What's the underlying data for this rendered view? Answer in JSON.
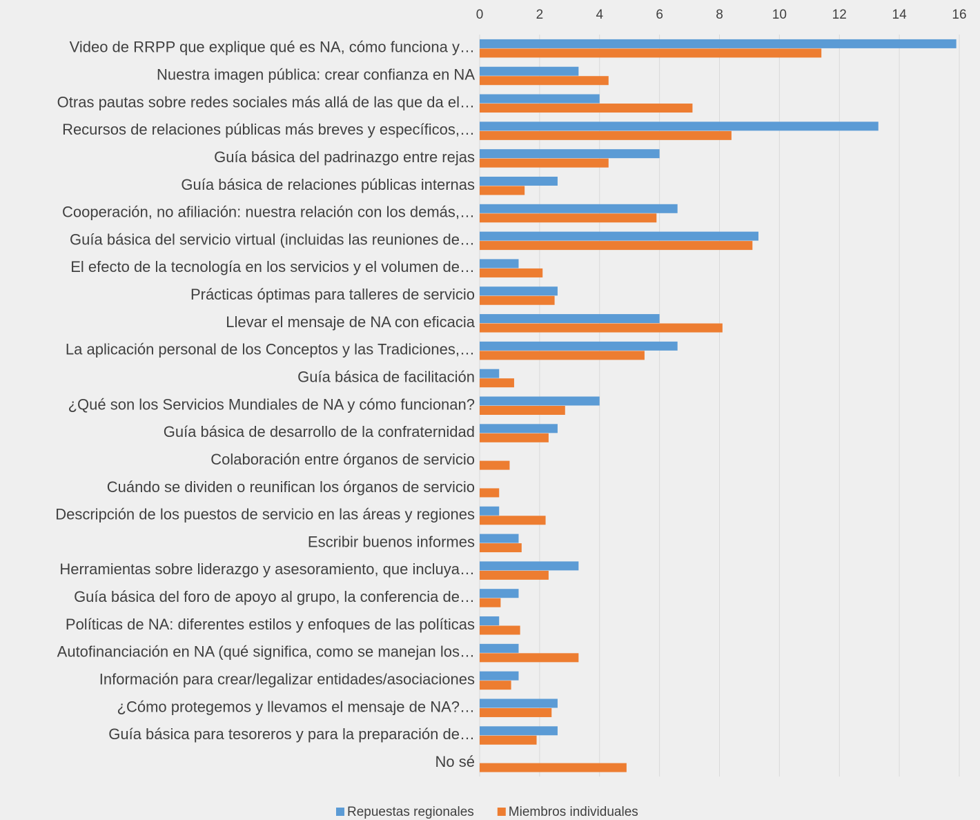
{
  "chart_data": {
    "type": "bar",
    "orientation": "horizontal",
    "categories": [
      "Video de RRPP que explique qué es NA, cómo funciona y…",
      "Nuestra imagen pública: crear confianza en NA",
      "Otras pautas sobre redes sociales más allá de las que da el…",
      "Recursos de relaciones públicas más breves y específicos,…",
      "Guía básica del padrinazgo entre rejas",
      "Guía básica de relaciones públicas internas",
      "Cooperación, no afiliación: nuestra relación con los demás,…",
      "Guía básica del servicio virtual (incluidas las reuniones de…",
      "El efecto de la tecnología en los servicios y el volumen de…",
      "Prácticas óptimas para talleres de servicio",
      "Llevar el mensaje de NA con eficacia",
      "La aplicación personal de los Conceptos y las Tradiciones,…",
      "Guía básica de facilitación",
      "¿Qué son los Servicios Mundiales de NA y cómo funcionan?",
      "Guía básica de desarrollo de la confraternidad",
      "Colaboración entre órganos de servicio",
      "Cuándo se dividen o reunifican los órganos de servicio",
      "Descripción de los puestos de servicio en las áreas y regiones",
      "Escribir buenos informes",
      "Herramientas sobre liderazgo y asesoramiento, que incluya…",
      "Guía básica del foro de apoyo al grupo, la conferencia de…",
      "Políticas de NA: diferentes estilos y enfoques de las políticas",
      "Autofinanciación en NA (qué significa, como se manejan los…",
      "Información para crear/legalizar entidades/asociaciones",
      "¿Cómo protegemos y llevamos el mensaje de NA?…",
      "Guía básica para tesoreros y para la preparación de…",
      "No sé"
    ],
    "series": [
      {
        "name": "Repuestas regionales",
        "color": "#5b9bd5",
        "values": [
          15.9,
          3.3,
          4.0,
          13.3,
          6.0,
          2.6,
          6.6,
          9.3,
          1.3,
          2.6,
          6.0,
          6.6,
          0.65,
          4.0,
          2.6,
          null,
          null,
          0.65,
          1.3,
          3.3,
          1.3,
          0.65,
          1.3,
          1.3,
          2.6,
          2.6,
          null
        ]
      },
      {
        "name": "Miembros individuales",
        "color": "#ed7d31",
        "values": [
          11.4,
          4.3,
          7.1,
          8.4,
          4.3,
          1.5,
          5.9,
          9.1,
          2.1,
          2.5,
          8.1,
          5.5,
          1.15,
          2.85,
          2.3,
          1.0,
          0.65,
          2.2,
          1.4,
          2.3,
          0.7,
          1.35,
          3.3,
          1.05,
          2.4,
          1.9,
          4.9
        ]
      }
    ],
    "xlim": [
      0,
      16
    ],
    "xticks": [
      0,
      2,
      4,
      6,
      8,
      10,
      12,
      14,
      16
    ],
    "grid": true,
    "legend": "bottom"
  }
}
